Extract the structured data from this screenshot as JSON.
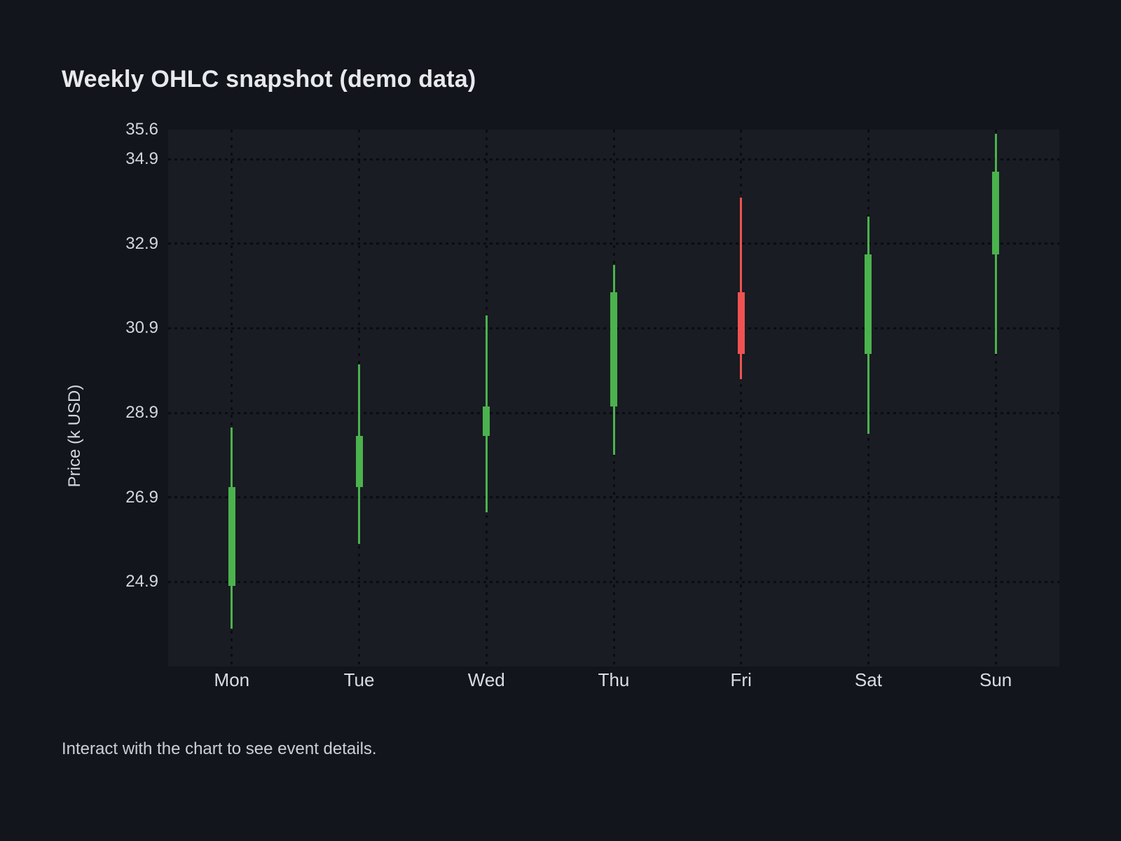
{
  "page": {
    "title": "Weekly OHLC snapshot (demo data)",
    "footer": "Interact with the chart to see event details."
  },
  "chart_data": {
    "type": "candlestick",
    "title": "Weekly OHLC snapshot (demo data)",
    "xlabel": "",
    "ylabel": "Price (k USD)",
    "categories": [
      "Mon",
      "Tue",
      "Wed",
      "Thu",
      "Fri",
      "Sat",
      "Sun"
    ],
    "ohlc": [
      {
        "day": "Mon",
        "open": 24.8,
        "high": 28.55,
        "low": 23.8,
        "close": 27.15,
        "direction": "up"
      },
      {
        "day": "Tue",
        "open": 27.15,
        "high": 30.05,
        "low": 25.8,
        "close": 28.35,
        "direction": "up"
      },
      {
        "day": "Wed",
        "open": 28.35,
        "high": 31.2,
        "low": 26.55,
        "close": 29.05,
        "direction": "up"
      },
      {
        "day": "Thu",
        "open": 29.05,
        "high": 32.4,
        "low": 27.9,
        "close": 31.75,
        "direction": "up"
      },
      {
        "day": "Fri",
        "open": 31.75,
        "high": 34.0,
        "low": 29.7,
        "close": 30.3,
        "direction": "down"
      },
      {
        "day": "Sat",
        "open": 30.3,
        "high": 33.55,
        "low": 28.4,
        "close": 32.65,
        "direction": "up"
      },
      {
        "day": "Sun",
        "open": 32.65,
        "high": 35.5,
        "low": 30.3,
        "close": 34.6,
        "direction": "up"
      }
    ],
    "y_axis": {
      "min": 22.9,
      "max": 35.6,
      "tick_labels": [
        "35.6",
        "34.9",
        "32.9",
        "30.9",
        "28.9",
        "26.9",
        "24.9"
      ],
      "tick_values": [
        35.6,
        34.9,
        32.9,
        30.9,
        28.9,
        26.9,
        24.9
      ],
      "grid_tick_values": [
        34.9,
        32.9,
        30.9,
        28.9,
        26.9,
        24.9
      ]
    },
    "grid": "dotted",
    "legend": null,
    "colors": {
      "up": "#4bb24e",
      "down": "#ee5352",
      "page_bg": "#13151c",
      "plot_bg": "#191c22",
      "grid": "#0a0c10",
      "title_text": "#e7e9ec",
      "tick_text": "#d3d6db"
    }
  }
}
